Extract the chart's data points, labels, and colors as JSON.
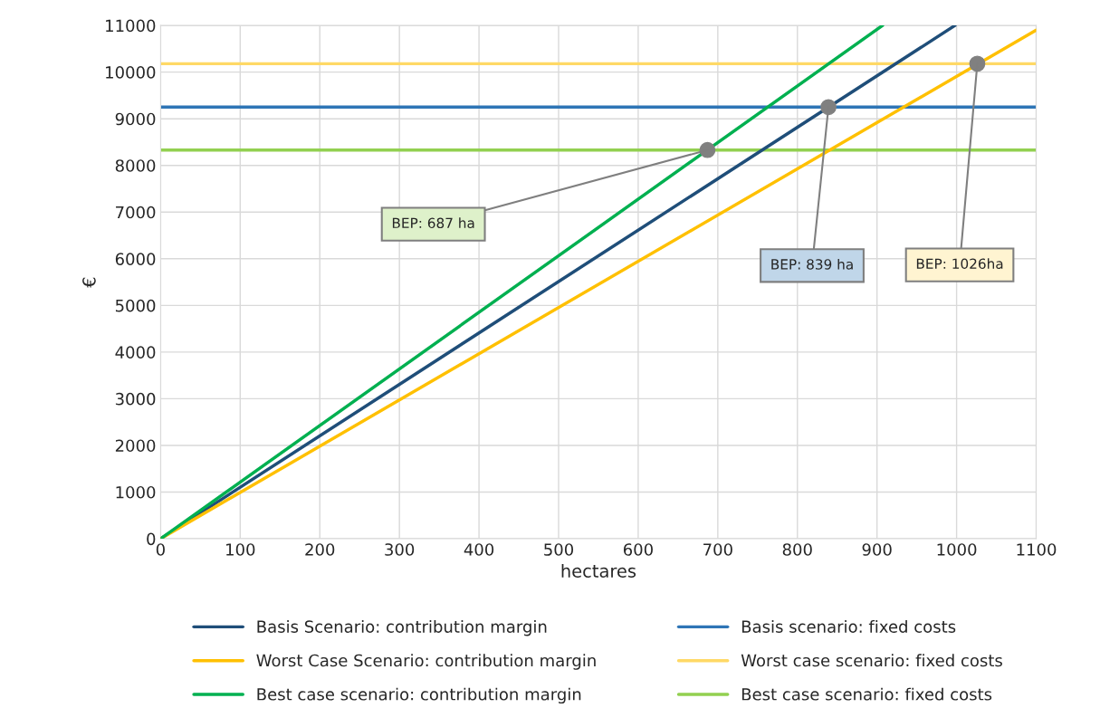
{
  "chart_data": {
    "type": "line",
    "xlabel": "hectares",
    "ylabel": "€",
    "xlim": [
      0,
      1100
    ],
    "xticks": [
      0,
      100,
      200,
      300,
      400,
      500,
      600,
      700,
      800,
      900,
      1000,
      1100
    ],
    "ylim": [
      0,
      11000
    ],
    "yticks": [
      0,
      1000,
      2000,
      3000,
      4000,
      5000,
      6000,
      7000,
      8000,
      9000,
      10000,
      11000
    ],
    "grid": true,
    "legend": "bottom",
    "marker": "none",
    "line_style": "solid",
    "series": [
      {
        "name": "Basis Scenario: contribution margin",
        "color": "#1f4e79",
        "x": [
          0,
          998
        ],
        "values": [
          0,
          11000
        ]
      },
      {
        "name": "Worst Case Scenario: contribution margin",
        "color": "#ffc000",
        "x": [
          0,
          1100
        ],
        "values": [
          0,
          10900
        ]
      },
      {
        "name": "Best case scenario: contribution margin",
        "color": "#00b050",
        "x": [
          0,
          907
        ],
        "values": [
          0,
          11000
        ]
      },
      {
        "type": "scatter",
        "color": "#808080",
        "marker": "circle",
        "x": [
          687,
          839,
          1026
        ],
        "values": [
          8330,
          9250,
          10180
        ]
      }
    ],
    "ref_lines": [
      {
        "axis": "y",
        "value": 9250,
        "label": "Basis scenario: fixed costs",
        "color": "#2e75b6"
      },
      {
        "axis": "y",
        "value": 10180,
        "label": "Worst case scenario: fixed costs",
        "color": "#ffd966"
      },
      {
        "axis": "y",
        "value": 8330,
        "label": "Best case scenario: fixed costs",
        "color": "#92d050"
      }
    ],
    "annotations": [
      {
        "text": "BEP: 687 ha",
        "x": 687,
        "y": 8330
      },
      {
        "text": "BEP: 839 ha",
        "x": 839,
        "y": 9250
      },
      {
        "text": "BEP: 1026ha",
        "x": 1026,
        "y": 10180
      }
    ]
  }
}
